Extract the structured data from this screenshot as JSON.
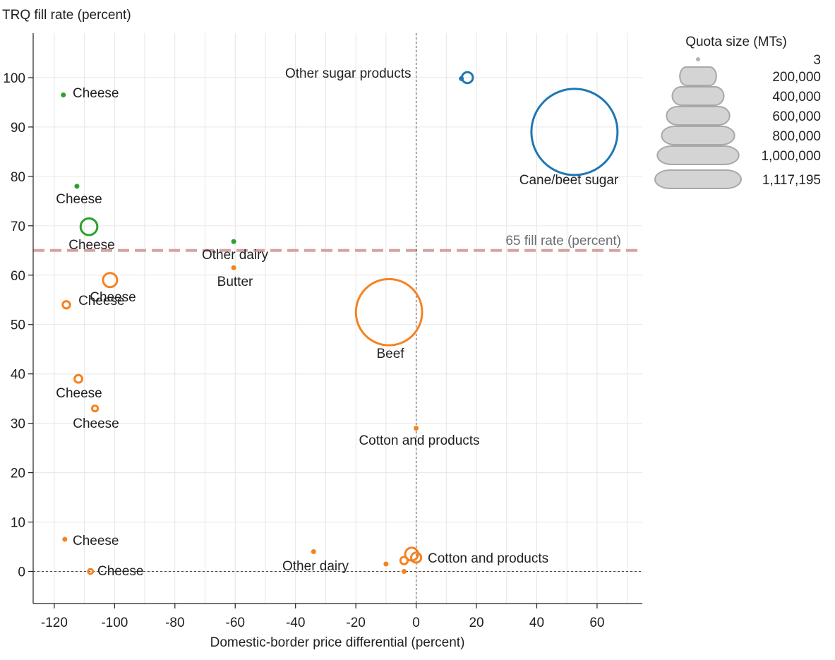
{
  "chart_data": {
    "type": "scatter",
    "ylabel": "TRQ fill rate (percent)",
    "xlabel": "Domestic-border price differential (percent)",
    "xlim": [
      -127,
      75
    ],
    "ylim": [
      -6.5,
      109
    ],
    "x_ticks": [
      -120,
      -100,
      -80,
      -60,
      -40,
      -20,
      0,
      20,
      40,
      60
    ],
    "y_ticks": [
      0,
      10,
      20,
      30,
      40,
      50,
      60,
      70,
      80,
      90,
      100
    ],
    "x_tick_labels": [
      "-120",
      "-100",
      "-80",
      "-60",
      "-40",
      "-20",
      "0",
      "20",
      "40",
      "60"
    ],
    "y_tick_labels": [
      "0",
      "10",
      "20",
      "30",
      "40",
      "50",
      "60",
      "70",
      "80",
      "90",
      "100"
    ],
    "grid": true,
    "reference_line": {
      "y": 65,
      "label": "65 fill rate (percent)",
      "color": "#d4a3a3"
    },
    "colors": {
      "blue": "#1f77b4",
      "green": "#2ca02c",
      "orange": "#f58220"
    },
    "points": [
      {
        "x": 17,
        "y": 100,
        "quota": 18000,
        "color": "blue",
        "label": "Other sugar products"
      },
      {
        "x": 15,
        "y": 99.8,
        "quota": 3,
        "color": "blue",
        "label": ""
      },
      {
        "x": 52.5,
        "y": 89,
        "quota": 1117195,
        "color": "blue",
        "label": "Cane/beet sugar"
      },
      {
        "x": -117,
        "y": 96.5,
        "quota": 600,
        "color": "green",
        "label": "Cheese"
      },
      {
        "x": -112.5,
        "y": 78,
        "quota": 2000,
        "color": "green",
        "label": "Cheese"
      },
      {
        "x": -108.5,
        "y": 69.8,
        "quota": 42000,
        "color": "green",
        "label": "Cheese"
      },
      {
        "x": -60.5,
        "y": 66.8,
        "quota": 2800,
        "color": "green",
        "label": "Other dairy"
      },
      {
        "x": -60.5,
        "y": 61.5,
        "quota": 3000,
        "color": "orange",
        "label": "Butter"
      },
      {
        "x": -101.5,
        "y": 59,
        "quota": 30000,
        "color": "orange",
        "label": "Cheese"
      },
      {
        "x": -116,
        "y": 54,
        "quota": 8000,
        "color": "orange",
        "label": "Cheese"
      },
      {
        "x": -9,
        "y": 52.5,
        "quota": 660000,
        "color": "orange",
        "label": "Beef"
      },
      {
        "x": -112,
        "y": 39,
        "quota": 9000,
        "color": "orange",
        "label": "Cheese"
      },
      {
        "x": -106.5,
        "y": 33,
        "quota": 5000,
        "color": "orange",
        "label": "Cheese"
      },
      {
        "x": 0,
        "y": 29,
        "quota": 500,
        "color": "orange",
        "label": "Cotton and products"
      },
      {
        "x": -116.5,
        "y": 6.5,
        "quota": 800,
        "color": "orange",
        "label": "Cheese"
      },
      {
        "x": -108,
        "y": 0,
        "quota": 3500,
        "color": "orange",
        "label": "Cheese"
      },
      {
        "x": -34,
        "y": 4,
        "quota": 3000,
        "color": "orange",
        "label": "Other dairy"
      },
      {
        "x": -10,
        "y": 1.5,
        "quota": 300,
        "color": "orange",
        "label": ""
      },
      {
        "x": -4,
        "y": 0,
        "quota": 300,
        "color": "orange",
        "label": ""
      },
      {
        "x": -4,
        "y": 2.2,
        "quota": 8000,
        "color": "orange",
        "label": ""
      },
      {
        "x": -1.5,
        "y": 3.5,
        "quota": 25000,
        "color": "orange",
        "label": ""
      },
      {
        "x": 0,
        "y": 2.8,
        "quota": 15000,
        "color": "orange",
        "label": "Cotton and products"
      }
    ],
    "legend": {
      "title": "Quota size (MTs)",
      "placement": "top-right",
      "entries": [
        {
          "quota": 3,
          "label": "3"
        },
        {
          "quota": 200000,
          "label": "200,000"
        },
        {
          "quota": 400000,
          "label": "400,000"
        },
        {
          "quota": 600000,
          "label": "600,000"
        },
        {
          "quota": 800000,
          "label": "800,000"
        },
        {
          "quota": 1000000,
          "label": "1,000,000"
        },
        {
          "quota": 1117195,
          "label": "1,117,195"
        }
      ]
    }
  }
}
